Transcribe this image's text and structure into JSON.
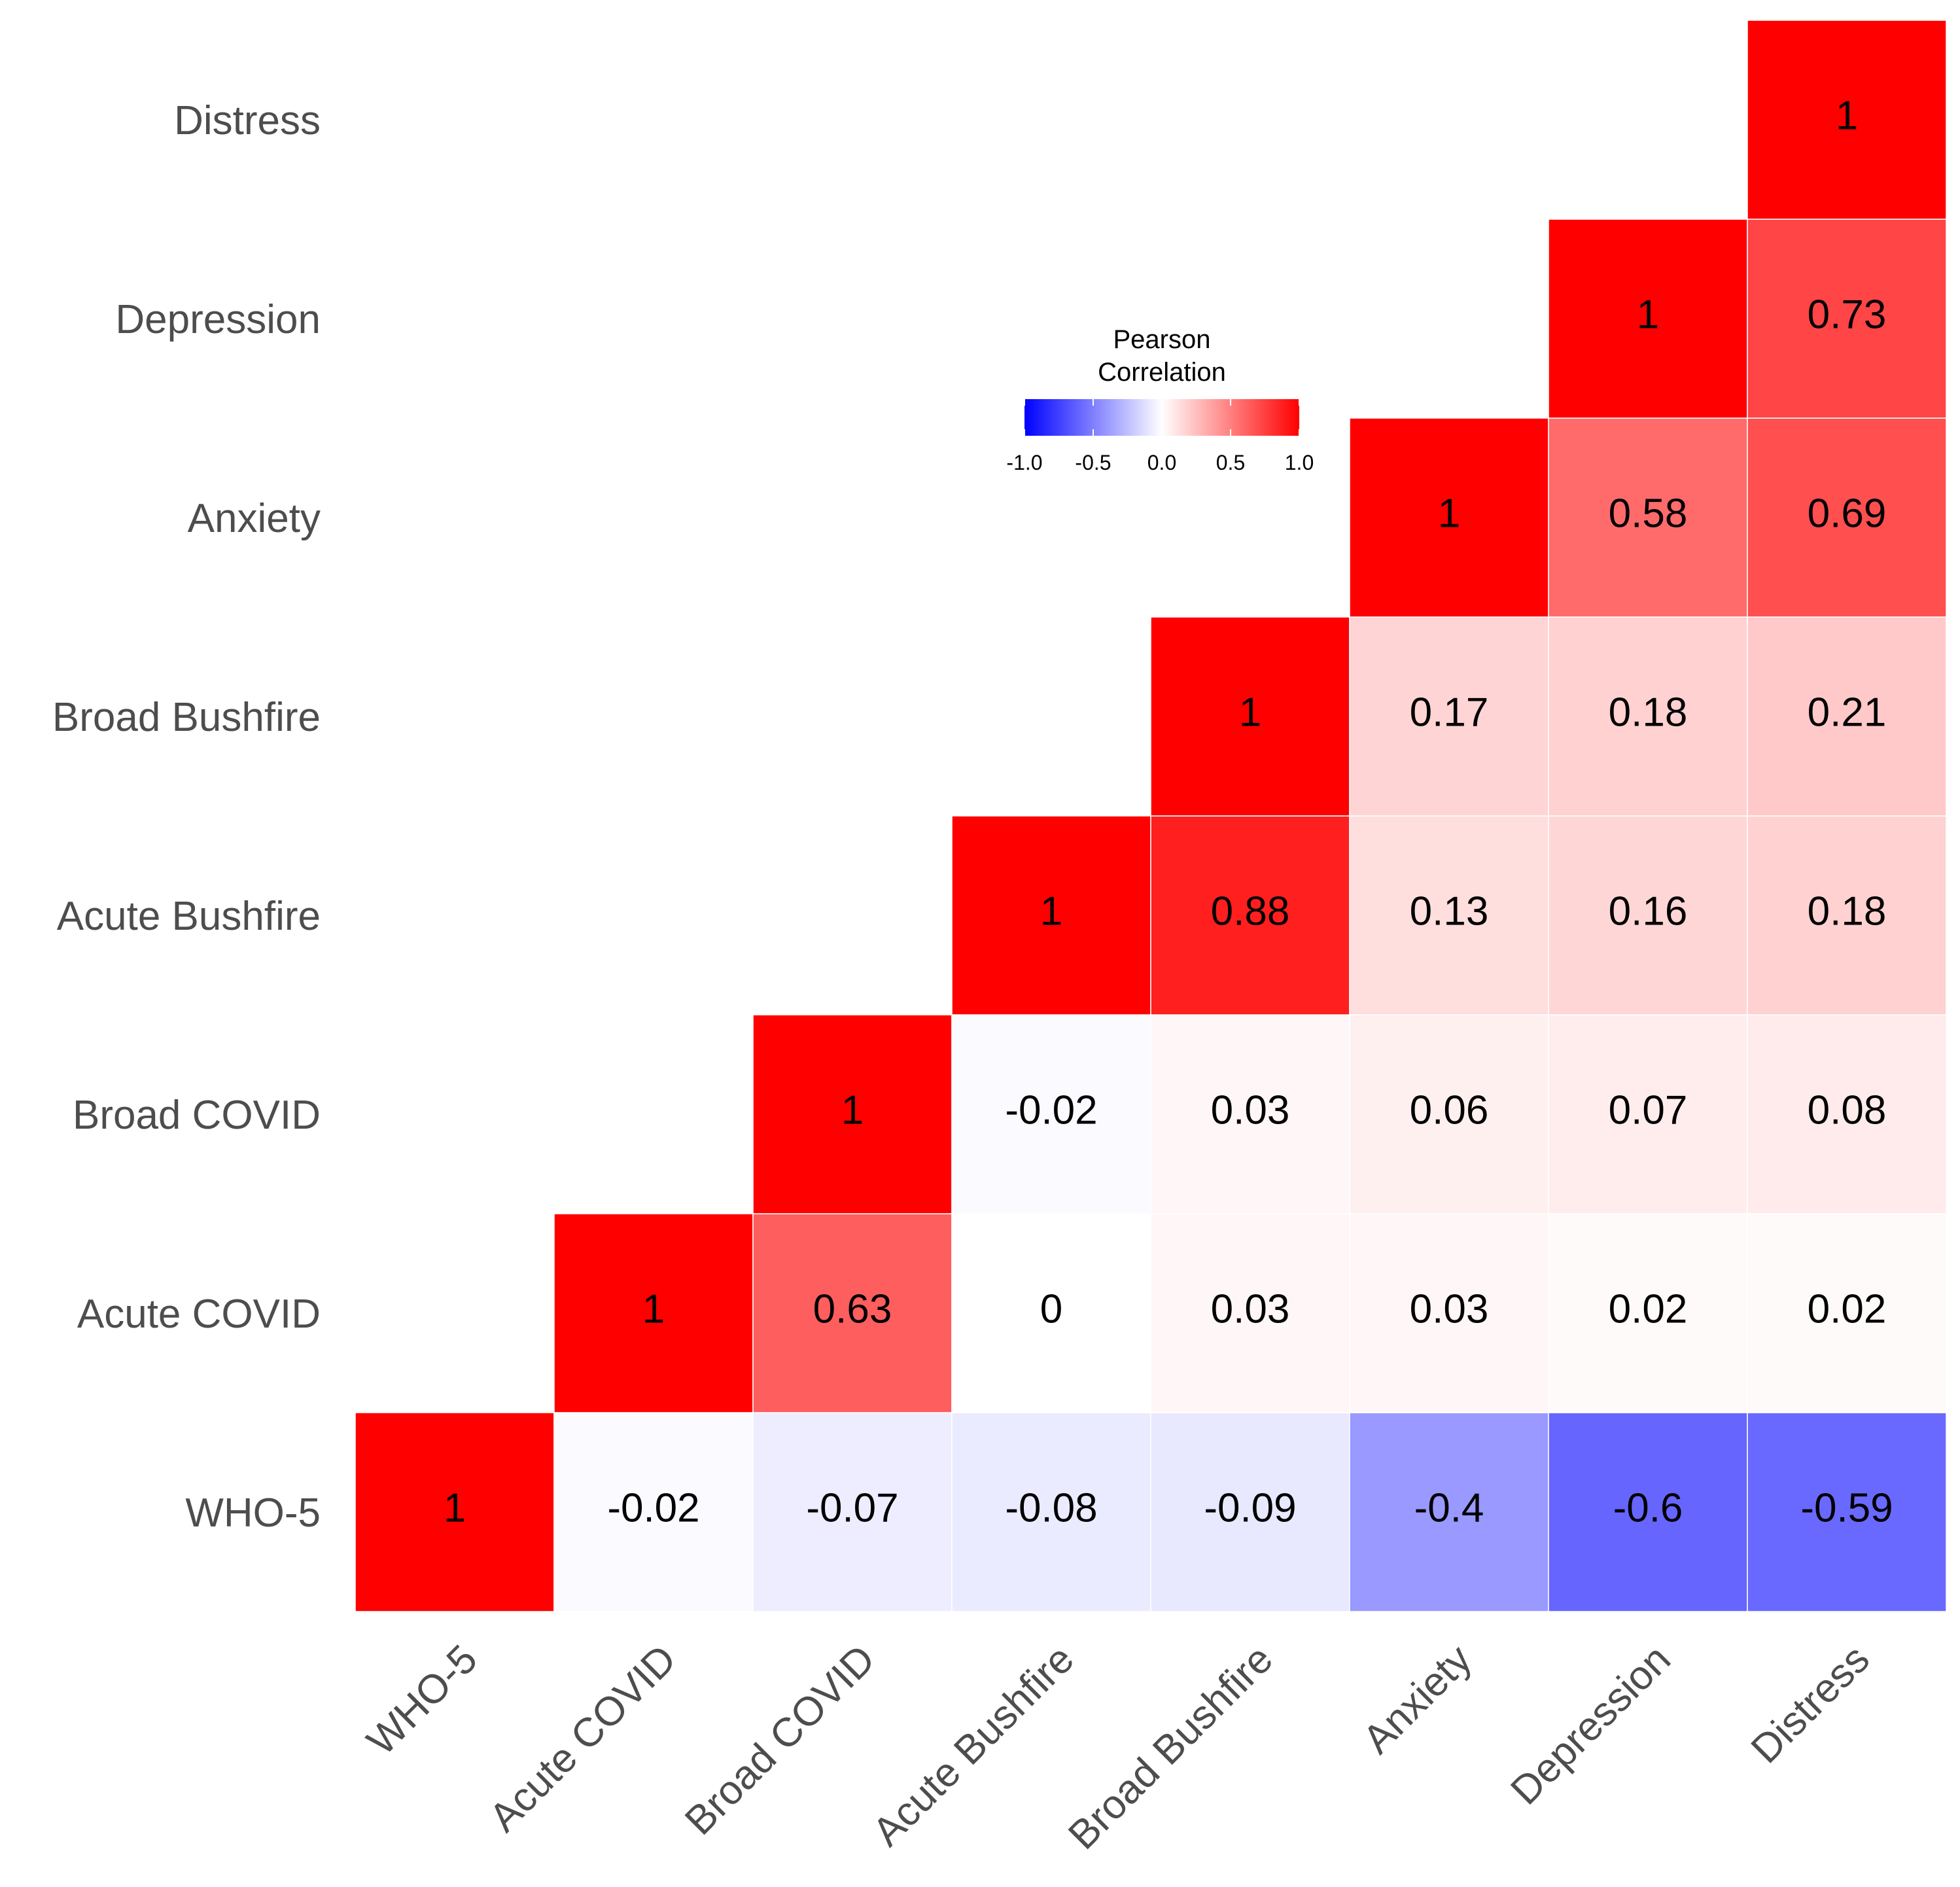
{
  "chart_data": {
    "type": "heatmap",
    "title": "",
    "variables": [
      "WHO-5",
      "Acute COVID",
      "Broad COVID",
      "Acute Bushfire",
      "Broad Bushfire",
      "Anxiety",
      "Depression",
      "Distress"
    ],
    "x_labels": [
      "WHO-5",
      "Acute COVID",
      "Broad COVID",
      "Acute Bushfire",
      "Broad Bushfire",
      "Anxiety",
      "Depression",
      "Distress"
    ],
    "y_labels": [
      "WHO-5",
      "Acute COVID",
      "Broad COVID",
      "Acute Bushfire",
      "Broad Bushfire",
      "Anxiety",
      "Depression",
      "Distress"
    ],
    "cells": [
      {
        "row": "WHO-5",
        "col": "WHO-5",
        "value": 1,
        "label": "1"
      },
      {
        "row": "WHO-5",
        "col": "Acute COVID",
        "value": -0.02,
        "label": "-0.02"
      },
      {
        "row": "WHO-5",
        "col": "Broad COVID",
        "value": -0.07,
        "label": "-0.07"
      },
      {
        "row": "WHO-5",
        "col": "Acute Bushfire",
        "value": -0.08,
        "label": "-0.08"
      },
      {
        "row": "WHO-5",
        "col": "Broad Bushfire",
        "value": -0.09,
        "label": "-0.09"
      },
      {
        "row": "WHO-5",
        "col": "Anxiety",
        "value": -0.4,
        "label": "-0.4"
      },
      {
        "row": "WHO-5",
        "col": "Depression",
        "value": -0.6,
        "label": "-0.6"
      },
      {
        "row": "WHO-5",
        "col": "Distress",
        "value": -0.59,
        "label": "-0.59"
      },
      {
        "row": "Acute COVID",
        "col": "Acute COVID",
        "value": 1,
        "label": "1"
      },
      {
        "row": "Acute COVID",
        "col": "Broad COVID",
        "value": 0.63,
        "label": "0.63"
      },
      {
        "row": "Acute COVID",
        "col": "Acute Bushfire",
        "value": 0,
        "label": "0"
      },
      {
        "row": "Acute COVID",
        "col": "Broad Bushfire",
        "value": 0.03,
        "label": "0.03"
      },
      {
        "row": "Acute COVID",
        "col": "Anxiety",
        "value": 0.03,
        "label": "0.03"
      },
      {
        "row": "Acute COVID",
        "col": "Depression",
        "value": 0.02,
        "label": "0.02"
      },
      {
        "row": "Acute COVID",
        "col": "Distress",
        "value": 0.02,
        "label": "0.02"
      },
      {
        "row": "Broad COVID",
        "col": "Broad COVID",
        "value": 1,
        "label": "1"
      },
      {
        "row": "Broad COVID",
        "col": "Acute Bushfire",
        "value": -0.02,
        "label": "-0.02"
      },
      {
        "row": "Broad COVID",
        "col": "Broad Bushfire",
        "value": 0.03,
        "label": "0.03"
      },
      {
        "row": "Broad COVID",
        "col": "Anxiety",
        "value": 0.06,
        "label": "0.06"
      },
      {
        "row": "Broad COVID",
        "col": "Depression",
        "value": 0.07,
        "label": "0.07"
      },
      {
        "row": "Broad COVID",
        "col": "Distress",
        "value": 0.08,
        "label": "0.08"
      },
      {
        "row": "Acute Bushfire",
        "col": "Acute Bushfire",
        "value": 1,
        "label": "1"
      },
      {
        "row": "Acute Bushfire",
        "col": "Broad Bushfire",
        "value": 0.88,
        "label": "0.88"
      },
      {
        "row": "Acute Bushfire",
        "col": "Anxiety",
        "value": 0.13,
        "label": "0.13"
      },
      {
        "row": "Acute Bushfire",
        "col": "Depression",
        "value": 0.16,
        "label": "0.16"
      },
      {
        "row": "Acute Bushfire",
        "col": "Distress",
        "value": 0.18,
        "label": "0.18"
      },
      {
        "row": "Broad Bushfire",
        "col": "Broad Bushfire",
        "value": 1,
        "label": "1"
      },
      {
        "row": "Broad Bushfire",
        "col": "Anxiety",
        "value": 0.17,
        "label": "0.17"
      },
      {
        "row": "Broad Bushfire",
        "col": "Depression",
        "value": 0.18,
        "label": "0.18"
      },
      {
        "row": "Broad Bushfire",
        "col": "Distress",
        "value": 0.21,
        "label": "0.21"
      },
      {
        "row": "Anxiety",
        "col": "Anxiety",
        "value": 1,
        "label": "1"
      },
      {
        "row": "Anxiety",
        "col": "Depression",
        "value": 0.58,
        "label": "0.58"
      },
      {
        "row": "Anxiety",
        "col": "Distress",
        "value": 0.69,
        "label": "0.69"
      },
      {
        "row": "Depression",
        "col": "Depression",
        "value": 1,
        "label": "1"
      },
      {
        "row": "Depression",
        "col": "Distress",
        "value": 0.73,
        "label": "0.73"
      },
      {
        "row": "Distress",
        "col": "Distress",
        "value": 1,
        "label": "1"
      }
    ],
    "legend": {
      "title_line1": "Pearson",
      "title_line2": "Correlation",
      "ticks": [
        {
          "value": -1.0,
          "label": "-1.0"
        },
        {
          "value": -0.5,
          "label": "-0.5"
        },
        {
          "value": 0.0,
          "label": "0.0"
        },
        {
          "value": 0.5,
          "label": "0.5"
        },
        {
          "value": 1.0,
          "label": "1.0"
        }
      ],
      "limits": [
        -1,
        1
      ],
      "placement": "inside-top-center"
    },
    "colors": {
      "low": "#0000ff",
      "mid": "#ffffff",
      "high": "#ff0000"
    },
    "xlabel": "",
    "ylabel": ""
  }
}
